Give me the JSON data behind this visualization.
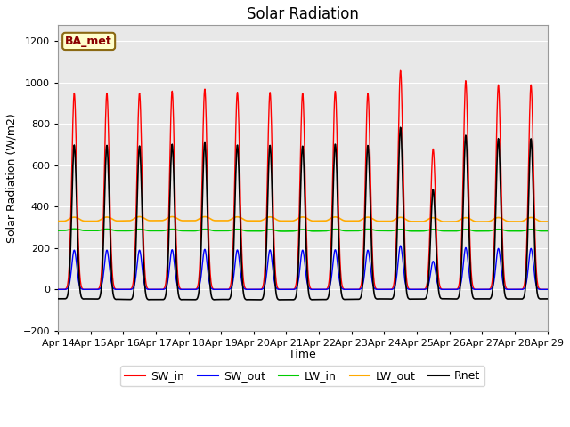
{
  "title": "Solar Radiation",
  "ylabel": "Solar Radiation (W/m2)",
  "xlabel": "Time",
  "ylim": [
    -200,
    1280
  ],
  "yticks": [
    -200,
    0,
    200,
    400,
    600,
    800,
    1000,
    1200
  ],
  "plot_bg_color": "#e8e8e8",
  "fig_bg_color": "#ffffff",
  "legend_label": "BA_met",
  "legend_entries": [
    "SW_in",
    "SW_out",
    "LW_in",
    "LW_out",
    "Rnet"
  ],
  "legend_colors": [
    "#ff0000",
    "#0000ff",
    "#00cc00",
    "#ffaa00",
    "#000000"
  ],
  "days": 15,
  "xtick_labels": [
    "Apr 14",
    "Apr 15",
    "Apr 16",
    "Apr 17",
    "Apr 18",
    "Apr 19",
    "Apr 20",
    "Apr 21",
    "Apr 22",
    "Apr 23",
    "Apr 24",
    "Apr 25",
    "Apr 26",
    "Apr 27",
    "Apr 28",
    "Apr 29"
  ],
  "SW_in_peaks": [
    950,
    950,
    950,
    960,
    970,
    955,
    955,
    950,
    960,
    950,
    1060,
    680,
    1010,
    990,
    990
  ],
  "LW_in_base": 285,
  "LW_out_base": 330,
  "title_fontsize": 12,
  "tick_labelsize": 8,
  "axis_labelsize": 9
}
